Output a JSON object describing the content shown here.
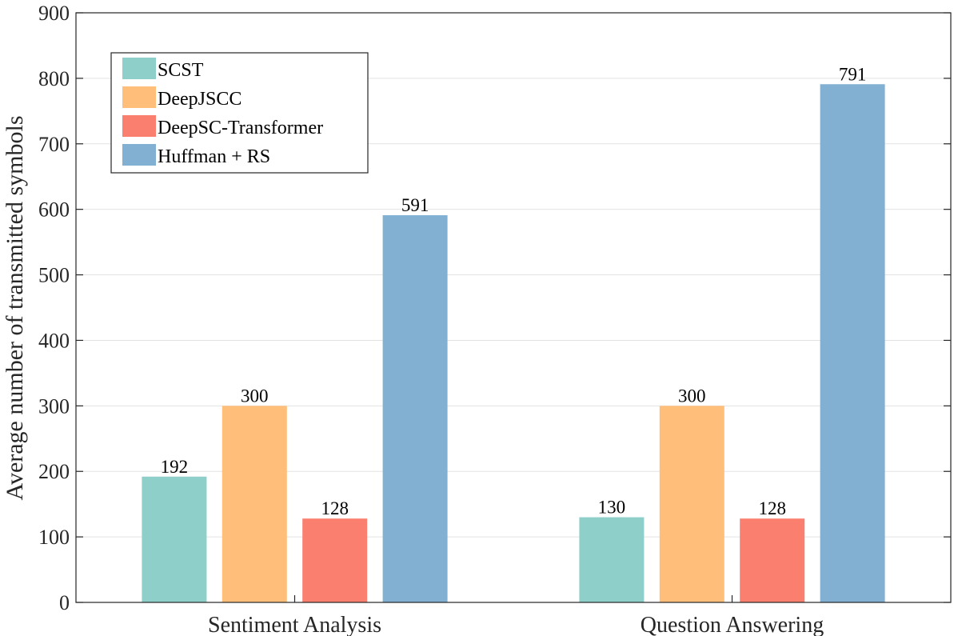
{
  "chart_data": {
    "type": "bar",
    "title": "",
    "xlabel": "",
    "ylabel": "Average number of transmitted symbols",
    "ylim": [
      0,
      900
    ],
    "yticks": [
      0,
      100,
      200,
      300,
      400,
      500,
      600,
      700,
      800,
      900
    ],
    "grid": true,
    "legend_position": "top-left",
    "categories": [
      "Sentiment Analysis",
      "Question Answering"
    ],
    "series": [
      {
        "name": "SCST",
        "color": "#8ecfc9",
        "values": [
          192,
          130
        ]
      },
      {
        "name": "DeepJSCC",
        "color": "#ffbe7a",
        "values": [
          300,
          300
        ]
      },
      {
        "name": "DeepSC-Transformer",
        "color": "#fa7f6f",
        "values": [
          128,
          128
        ]
      },
      {
        "name": "Huffman + RS",
        "color": "#82b0d2",
        "values": [
          591,
          791
        ]
      }
    ]
  }
}
